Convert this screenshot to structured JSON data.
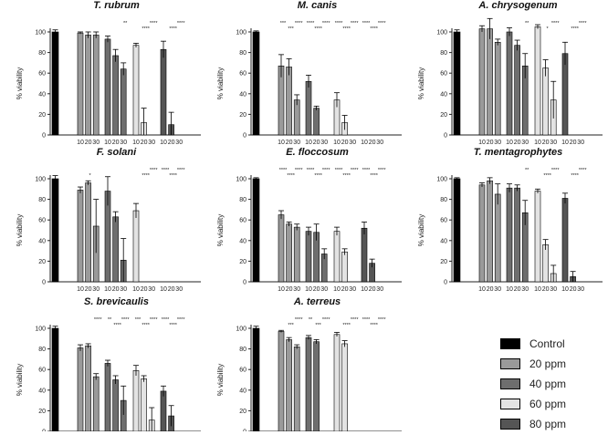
{
  "legend": {
    "items": [
      {
        "label": "Control",
        "color": "#000000"
      },
      {
        "label": "20 ppm",
        "color": "#9a9a9a"
      },
      {
        "label": "40 ppm",
        "color": "#6e6e6e"
      },
      {
        "label": "60 ppm",
        "color": "#e3e3e3"
      },
      {
        "label": "80 ppm",
        "color": "#555555"
      }
    ]
  },
  "chart_data": [
    {
      "type": "bar",
      "title": "T. rubrum",
      "ylabel": "% viability",
      "ylim": [
        0,
        100
      ],
      "yticks": [
        0,
        20,
        40,
        60,
        80,
        100
      ],
      "xticklabels": [
        "10",
        "20",
        "30"
      ],
      "control": {
        "value": 100,
        "error": 2
      },
      "groups": [
        {
          "concentration": "20 ppm",
          "values": [
            99,
            97,
            97
          ],
          "errors": [
            1,
            3,
            3
          ],
          "significance": [
            "",
            "",
            ""
          ]
        },
        {
          "concentration": "40 ppm",
          "values": [
            93,
            77,
            64
          ],
          "errors": [
            3,
            6,
            6
          ],
          "significance": [
            "",
            "",
            "**"
          ]
        },
        {
          "concentration": "60 ppm",
          "values": [
            87,
            12,
            0
          ],
          "errors": [
            2,
            14,
            0
          ],
          "significance": [
            "",
            "****",
            "****"
          ]
        },
        {
          "concentration": "80 ppm",
          "values": [
            83,
            10,
            0
          ],
          "errors": [
            8,
            12,
            0
          ],
          "significance": [
            "",
            "****",
            "****"
          ]
        }
      ]
    },
    {
      "type": "bar",
      "title": "M. canis",
      "ylabel": "% viability",
      "ylim": [
        0,
        100
      ],
      "yticks": [
        0,
        20,
        40,
        60,
        80,
        100
      ],
      "xticklabels": [
        "10",
        "20",
        "30"
      ],
      "control": {
        "value": 100,
        "error": 1
      },
      "groups": [
        {
          "concentration": "20 ppm",
          "values": [
            67,
            66,
            34
          ],
          "errors": [
            11,
            8,
            5
          ],
          "significance": [
            "***",
            "***",
            "****"
          ]
        },
        {
          "concentration": "40 ppm",
          "values": [
            52,
            26,
            0
          ],
          "errors": [
            6,
            2,
            0
          ],
          "significance": [
            "****",
            "****",
            "****"
          ]
        },
        {
          "concentration": "60 ppm",
          "values": [
            34,
            12,
            0
          ],
          "errors": [
            7,
            7,
            0
          ],
          "significance": [
            "****",
            "****",
            "****"
          ]
        },
        {
          "concentration": "80 ppm",
          "values": [
            0,
            0,
            0
          ],
          "errors": [
            0,
            0,
            0
          ],
          "significance": [
            "****",
            "****",
            "****"
          ]
        }
      ]
    },
    {
      "type": "bar",
      "title": "A. chrysogenum",
      "ylabel": "% viability",
      "ylim": [
        0,
        100
      ],
      "yticks": [
        0,
        20,
        40,
        60,
        80,
        100
      ],
      "xticklabels": [
        "10",
        "20",
        "30"
      ],
      "control": {
        "value": 100,
        "error": 2
      },
      "groups": [
        {
          "concentration": "20 ppm",
          "values": [
            103,
            103,
            90
          ],
          "errors": [
            3,
            10,
            3
          ],
          "significance": [
            "",
            "",
            ""
          ]
        },
        {
          "concentration": "40 ppm",
          "values": [
            100,
            87,
            67
          ],
          "errors": [
            4,
            5,
            12
          ],
          "significance": [
            "",
            "",
            "**"
          ]
        },
        {
          "concentration": "60 ppm",
          "values": [
            105,
            65,
            34
          ],
          "errors": [
            2,
            8,
            18
          ],
          "significance": [
            "",
            "*",
            "****"
          ]
        },
        {
          "concentration": "80 ppm",
          "values": [
            79,
            0,
            0
          ],
          "errors": [
            11,
            0,
            0
          ],
          "significance": [
            "",
            "****",
            "****"
          ]
        }
      ]
    },
    {
      "type": "bar",
      "title": "F. solani",
      "ylabel": "% viability",
      "ylim": [
        0,
        100
      ],
      "yticks": [
        0,
        20,
        40,
        60,
        80,
        100
      ],
      "xticklabels": [
        "10",
        "20",
        "30"
      ],
      "control": {
        "value": 100,
        "error": 3
      },
      "groups": [
        {
          "concentration": "20 ppm",
          "values": [
            89,
            96,
            54
          ],
          "errors": [
            3,
            2,
            26
          ],
          "significance": [
            "",
            "*",
            ""
          ]
        },
        {
          "concentration": "40 ppm",
          "values": [
            88,
            63,
            21
          ],
          "errors": [
            14,
            5,
            21
          ],
          "significance": [
            "",
            "",
            ""
          ]
        },
        {
          "concentration": "60 ppm",
          "values": [
            69,
            0,
            0
          ],
          "errors": [
            7,
            0,
            0
          ],
          "significance": [
            "",
            "****",
            "****"
          ]
        },
        {
          "concentration": "80 ppm",
          "values": [
            0,
            0,
            0
          ],
          "errors": [
            0,
            0,
            0
          ],
          "significance": [
            "****",
            "****",
            "****"
          ]
        }
      ]
    },
    {
      "type": "bar",
      "title": "E. floccosum",
      "ylabel": "% viability",
      "ylim": [
        0,
        100
      ],
      "yticks": [
        0,
        20,
        40,
        60,
        80,
        100
      ],
      "xticklabels": [
        "10",
        "20",
        "30"
      ],
      "control": {
        "value": 100,
        "error": 1
      },
      "groups": [
        {
          "concentration": "20 ppm",
          "values": [
            65,
            56,
            53
          ],
          "errors": [
            4,
            2,
            3
          ],
          "significance": [
            "****",
            "****",
            "****"
          ]
        },
        {
          "concentration": "40 ppm",
          "values": [
            49,
            48,
            27
          ],
          "errors": [
            4,
            8,
            5
          ],
          "significance": [
            "****",
            "****",
            "****"
          ]
        },
        {
          "concentration": "60 ppm",
          "values": [
            49,
            29,
            0
          ],
          "errors": [
            4,
            3,
            0
          ],
          "significance": [
            "****",
            "****",
            "****"
          ]
        },
        {
          "concentration": "80 ppm",
          "values": [
            52,
            18,
            0
          ],
          "errors": [
            6,
            4,
            0
          ],
          "significance": [
            "****",
            "****",
            "****"
          ]
        }
      ]
    },
    {
      "type": "bar",
      "title": "T. mentagrophytes",
      "ylabel": "% viability",
      "ylim": [
        0,
        100
      ],
      "yticks": [
        0,
        20,
        40,
        60,
        80,
        100
      ],
      "xticklabels": [
        "10",
        "20",
        "30"
      ],
      "control": {
        "value": 100,
        "error": 1
      },
      "groups": [
        {
          "concentration": "20 ppm",
          "values": [
            94,
            98,
            85
          ],
          "errors": [
            2,
            3,
            10
          ],
          "significance": [
            "",
            "",
            ""
          ]
        },
        {
          "concentration": "40 ppm",
          "values": [
            91,
            91,
            67
          ],
          "errors": [
            4,
            3,
            12
          ],
          "significance": [
            "",
            "",
            "**"
          ]
        },
        {
          "concentration": "60 ppm",
          "values": [
            88,
            36,
            8
          ],
          "errors": [
            2,
            5,
            8
          ],
          "significance": [
            "",
            "****",
            "****"
          ]
        },
        {
          "concentration": "80 ppm",
          "values": [
            81,
            5,
            0
          ],
          "errors": [
            5,
            5,
            0
          ],
          "significance": [
            "",
            "****",
            "****"
          ]
        }
      ]
    },
    {
      "type": "bar",
      "title": "S. brevicaulis",
      "ylabel": "% viability",
      "ylim": [
        0,
        100
      ],
      "yticks": [
        0,
        20,
        40,
        60,
        80,
        100
      ],
      "xticklabels": [
        "10",
        "20",
        "30"
      ],
      "control": {
        "value": 100,
        "error": 2
      },
      "groups": [
        {
          "concentration": "20 ppm",
          "values": [
            81,
            83,
            53
          ],
          "errors": [
            3,
            2,
            3
          ],
          "significance": [
            "",
            "",
            "****"
          ]
        },
        {
          "concentration": "40 ppm",
          "values": [
            66,
            50,
            30
          ],
          "errors": [
            3,
            4,
            14
          ],
          "significance": [
            "**",
            "****",
            "****"
          ]
        },
        {
          "concentration": "60 ppm",
          "values": [
            59,
            51,
            11
          ],
          "errors": [
            5,
            3,
            12
          ],
          "significance": [
            "***",
            "****",
            "****"
          ]
        },
        {
          "concentration": "80 ppm",
          "values": [
            39,
            15,
            0
          ],
          "errors": [
            5,
            10,
            0
          ],
          "significance": [
            "****",
            "****",
            "****"
          ]
        }
      ]
    },
    {
      "type": "bar",
      "title": "A. terreus",
      "ylabel": "% viability",
      "ylim": [
        0,
        100
      ],
      "yticks": [
        0,
        20,
        40,
        60,
        80,
        100
      ],
      "xticklabels": [
        "10",
        "20",
        "30"
      ],
      "control": {
        "value": 100,
        "error": 2
      },
      "groups": [
        {
          "concentration": "20 ppm",
          "values": [
            97,
            89,
            82
          ],
          "errors": [
            1,
            2,
            2
          ],
          "significance": [
            "",
            "***",
            "****"
          ]
        },
        {
          "concentration": "40 ppm",
          "values": [
            91,
            87,
            0
          ],
          "errors": [
            2,
            2,
            0
          ],
          "significance": [
            "**",
            "***",
            "****"
          ]
        },
        {
          "concentration": "60 ppm",
          "values": [
            94,
            85,
            0
          ],
          "errors": [
            2,
            3,
            0
          ],
          "significance": [
            "",
            "****",
            "****"
          ]
        },
        {
          "concentration": "80 ppm",
          "values": [
            0,
            0,
            0
          ],
          "errors": [
            0,
            0,
            0
          ],
          "significance": [
            "****",
            "****",
            "****"
          ]
        }
      ]
    }
  ]
}
